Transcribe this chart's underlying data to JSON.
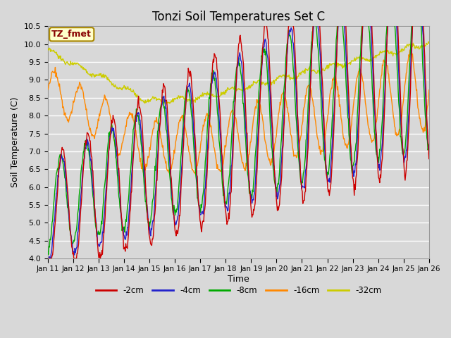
{
  "title": "Tonzi Soil Temperatures Set C",
  "xlabel": "Time",
  "ylabel": "Soil Temperature (C)",
  "ylim": [
    4.0,
    10.5
  ],
  "background_color": "#d8d8d8",
  "plot_bg_color": "#d8d8d8",
  "grid_color": "#ffffff",
  "series_colors": {
    "-2cm": "#cc0000",
    "-4cm": "#2222cc",
    "-8cm": "#00aa00",
    "-16cm": "#ff8800",
    "-32cm": "#cccc00"
  },
  "legend_labels": [
    "-2cm",
    "-4cm",
    "-8cm",
    "-16cm",
    "-32cm"
  ],
  "annotation_text": "TZ_fmet",
  "annotation_bg": "#ffffcc",
  "annotation_border": "#aa8800",
  "annotation_text_color": "#880000",
  "x_tick_labels": [
    "Jan 11",
    "Jan 12",
    "Jan 13",
    "Jan 14",
    "Jan 15",
    "Jan 16",
    "Jan 17",
    "Jan 18",
    "Jan 19",
    "Jan 20",
    "Jan 21",
    "Jan 22",
    "Jan 23",
    "Jan 24",
    "Jan 25",
    "Jan 26"
  ],
  "yticks": [
    4.0,
    4.5,
    5.0,
    5.5,
    6.0,
    6.5,
    7.0,
    7.5,
    8.0,
    8.5,
    9.0,
    9.5,
    10.0,
    10.5
  ],
  "title_fontsize": 12,
  "n_days": 15
}
